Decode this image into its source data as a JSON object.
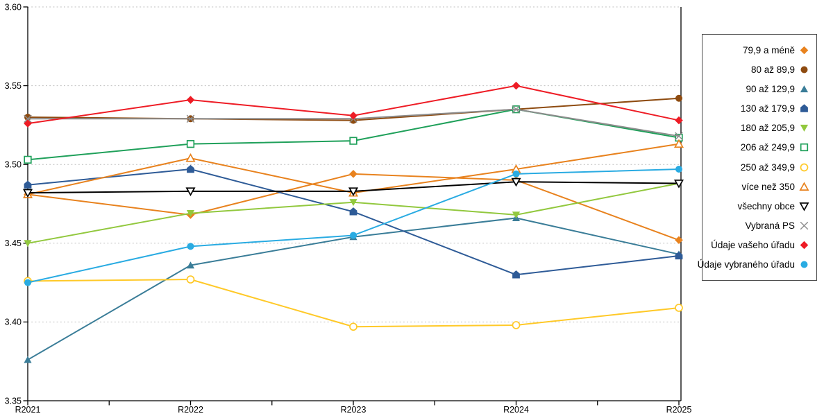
{
  "chart_data": {
    "type": "line",
    "categories": [
      "R2021",
      "R2022",
      "R2023",
      "R2024",
      "R2025"
    ],
    "ylim": [
      3.35,
      3.6
    ],
    "ytick_step": 0.05,
    "ytick_labels": [
      "3.35",
      "3.40",
      "3.45",
      "3.50",
      "3.55",
      "3.60"
    ],
    "grid": "horizontal-dotted",
    "legend_position": "right-box",
    "series": [
      {
        "name": "79,9 a méně",
        "marker": "diamond",
        "fill": "solid",
        "color": "#E8821E",
        "values": [
          3.481,
          3.468,
          3.494,
          3.49,
          3.452
        ]
      },
      {
        "name": "80 až 89,9",
        "marker": "circle",
        "fill": "solid",
        "color": "#8E4B10",
        "values": [
          3.53,
          3.529,
          3.528,
          3.535,
          3.542
        ]
      },
      {
        "name": "90 až 129,9",
        "marker": "triangle-up",
        "fill": "solid",
        "color": "#3A7D98",
        "values": [
          3.376,
          3.436,
          3.454,
          3.466,
          3.443
        ]
      },
      {
        "name": "130 až 179,9",
        "marker": "pentagon",
        "fill": "solid",
        "color": "#2E5B97",
        "values": [
          3.487,
          3.497,
          3.47,
          3.43,
          3.442
        ]
      },
      {
        "name": "180 až 205,9",
        "marker": "triangle-down",
        "fill": "solid",
        "color": "#92C83E",
        "values": [
          3.45,
          3.469,
          3.476,
          3.468,
          3.488
        ]
      },
      {
        "name": "206 až 249,9",
        "marker": "square",
        "fill": "open",
        "color": "#1FA05A",
        "values": [
          3.503,
          3.513,
          3.515,
          3.535,
          3.517
        ]
      },
      {
        "name": "250 až 349,9",
        "marker": "circle",
        "fill": "open",
        "color": "#FFC928",
        "values": [
          3.426,
          3.427,
          3.397,
          3.398,
          3.409
        ]
      },
      {
        "name": "více než 350",
        "marker": "triangle-up",
        "fill": "open",
        "color": "#E8821E",
        "values": [
          3.481,
          3.504,
          3.482,
          3.497,
          3.513
        ]
      },
      {
        "name": "všechny obce",
        "marker": "triangle-down",
        "fill": "open",
        "color": "#000000",
        "values": [
          3.482,
          3.483,
          3.483,
          3.489,
          3.488
        ]
      },
      {
        "name": "Vybraná PS",
        "marker": "x",
        "fill": "open",
        "color": "#8C8C8C",
        "values": [
          3.529,
          3.529,
          3.529,
          3.535,
          3.518
        ]
      },
      {
        "name": "Údaje vašeho úřadu",
        "marker": "diamond",
        "fill": "solid",
        "color": "#EE1C25",
        "values": [
          3.526,
          3.541,
          3.531,
          3.55,
          3.528
        ]
      },
      {
        "name": "Údaje vybraného úřadu",
        "marker": "circle",
        "fill": "solid",
        "color": "#29ABE2",
        "values": [
          3.425,
          3.448,
          3.455,
          3.494,
          3.497
        ]
      }
    ]
  }
}
